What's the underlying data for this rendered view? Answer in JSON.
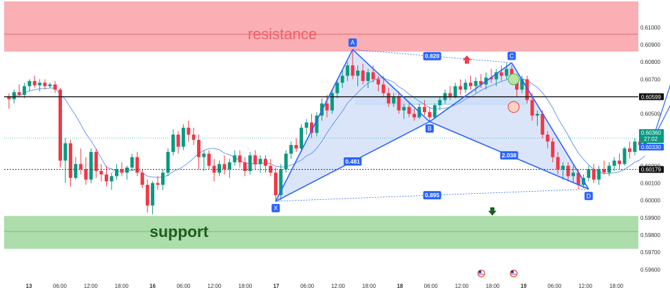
{
  "chart_data": {
    "type": "candlestick",
    "y_axis": {
      "ticks": [
        "0.61000",
        "0.60900",
        "0.60800",
        "0.60700",
        "0.60600",
        "0.60500",
        "0.60400",
        "0.60300",
        "0.60200",
        "0.60100",
        "0.60000",
        "0.59900",
        "0.59800",
        "0.59700",
        "0.59600"
      ],
      "range": [
        0.5955,
        0.6115
      ]
    },
    "x_axis": {
      "ticks": [
        "13",
        "06:00",
        "12:00",
        "18:00",
        "16",
        "06:00",
        "12:00",
        "18:00",
        "17",
        "06:00",
        "12:00",
        "18:00",
        "18",
        "06:00",
        "12:00",
        "18:00",
        "19",
        "06:00",
        "12:00",
        "18:00"
      ]
    },
    "zones": {
      "resistance": {
        "label": "resistance",
        "from": 0.6086,
        "to": 0.6115,
        "mid": 0.6096,
        "color": "#f8a1a6"
      },
      "support": {
        "label": "support",
        "from": 0.5972,
        "to": 0.5991,
        "mid": 0.5982,
        "color": "#a3d9a1"
      },
      "entry_box": {
        "from": 0.60555,
        "to": 0.60595,
        "color": "#cfe8f7"
      }
    },
    "levels": {
      "horizontal_black": {
        "value": 0.60599,
        "label": "0.60599"
      },
      "dotted_black": {
        "value": 0.60179,
        "label": "0.60179"
      },
      "dotted_blue": {
        "value": 0.6036
      }
    },
    "price_tags": {
      "current": {
        "value": "0.60360",
        "countdown": "27:02",
        "color": "#089981"
      },
      "ma": {
        "value": "0.60330",
        "color": "#2962ff"
      }
    },
    "harmonic": {
      "points": [
        {
          "label": "X",
          "bar": 52,
          "price": 0.59995
        },
        {
          "label": "A",
          "bar": 67,
          "price": 0.60872
        },
        {
          "label": "B",
          "bar": 82,
          "price": 0.60455
        },
        {
          "label": "C",
          "bar": 98,
          "price": 0.60795
        },
        {
          "label": "D",
          "bar": 113,
          "price": 0.60065
        }
      ],
      "ratios": [
        {
          "label": "0.828",
          "pair": "A-C"
        },
        {
          "label": "0.481",
          "pair": "X-B"
        },
        {
          "label": "2.038",
          "pair": "B-D"
        },
        {
          "label": "0.895",
          "pair": "X-D"
        }
      ],
      "color": "#2962ff",
      "fill": "#cfdcf7"
    },
    "candles": [
      [
        0.606,
        0.60618,
        0.6053,
        0.60585
      ],
      [
        0.60585,
        0.6064,
        0.6056,
        0.60625
      ],
      [
        0.60625,
        0.6067,
        0.606,
        0.6061
      ],
      [
        0.6061,
        0.6068,
        0.6059,
        0.6066
      ],
      [
        0.6066,
        0.607,
        0.6063,
        0.6069
      ],
      [
        0.6069,
        0.6072,
        0.6065,
        0.60665
      ],
      [
        0.60665,
        0.607,
        0.6063,
        0.6068
      ],
      [
        0.6068,
        0.607,
        0.6064,
        0.6066
      ],
      [
        0.6066,
        0.6068,
        0.6065,
        0.6067
      ],
      [
        0.6067,
        0.6069,
        0.6062,
        0.6064
      ],
      [
        0.6064,
        0.6065,
        0.6019,
        0.6023
      ],
      [
        0.6023,
        0.6036,
        0.601,
        0.6033
      ],
      [
        0.6033,
        0.6035,
        0.6008,
        0.6013
      ],
      [
        0.6013,
        0.6025,
        0.6012,
        0.6021
      ],
      [
        0.6021,
        0.603,
        0.6015,
        0.6018
      ],
      [
        0.6018,
        0.6025,
        0.6009,
        0.6012
      ],
      [
        0.6012,
        0.603,
        0.601,
        0.6028
      ],
      [
        0.6028,
        0.603,
        0.6013,
        0.6017
      ],
      [
        0.6017,
        0.6021,
        0.6011,
        0.6015
      ],
      [
        0.6015,
        0.602,
        0.6008,
        0.6011
      ],
      [
        0.6011,
        0.6016,
        0.6006,
        0.6014
      ],
      [
        0.6014,
        0.6021,
        0.6012,
        0.6018
      ],
      [
        0.6018,
        0.6022,
        0.6014,
        0.6016
      ],
      [
        0.6016,
        0.602,
        0.6012,
        0.6019
      ],
      [
        0.6019,
        0.6027,
        0.6017,
        0.6025
      ],
      [
        0.6025,
        0.6028,
        0.6014,
        0.6016
      ],
      [
        0.6016,
        0.6018,
        0.6007,
        0.6009
      ],
      [
        0.6009,
        0.6012,
        0.5993,
        0.5997
      ],
      [
        0.5997,
        0.6011,
        0.5992,
        0.601
      ],
      [
        0.601,
        0.6014,
        0.6006,
        0.6009
      ],
      [
        0.6009,
        0.6018,
        0.6006,
        0.6016
      ],
      [
        0.6016,
        0.603,
        0.6014,
        0.6028
      ],
      [
        0.6028,
        0.6041,
        0.6026,
        0.6038
      ],
      [
        0.6038,
        0.604,
        0.6027,
        0.6031
      ],
      [
        0.6031,
        0.6044,
        0.6029,
        0.6042
      ],
      [
        0.6042,
        0.6046,
        0.6034,
        0.6038
      ],
      [
        0.6038,
        0.6042,
        0.6032,
        0.6035
      ],
      [
        0.6035,
        0.6038,
        0.6018,
        0.6025
      ],
      [
        0.6025,
        0.6029,
        0.6017,
        0.6027
      ],
      [
        0.6027,
        0.6029,
        0.6018,
        0.602
      ],
      [
        0.602,
        0.6024,
        0.6011,
        0.6016
      ],
      [
        0.6016,
        0.6023,
        0.6014,
        0.6021
      ],
      [
        0.6021,
        0.6026,
        0.6015,
        0.6018
      ],
      [
        0.6018,
        0.6024,
        0.6013,
        0.6022
      ],
      [
        0.6022,
        0.6029,
        0.602,
        0.6026
      ],
      [
        0.6026,
        0.6029,
        0.6019,
        0.6022
      ],
      [
        0.6022,
        0.6025,
        0.6014,
        0.6017
      ],
      [
        0.6017,
        0.6028,
        0.6015,
        0.6026
      ],
      [
        0.6026,
        0.6029,
        0.6018,
        0.6021
      ],
      [
        0.6021,
        0.6026,
        0.6016,
        0.6024
      ],
      [
        0.6024,
        0.6026,
        0.6016,
        0.602
      ],
      [
        0.602,
        0.6024,
        0.6014,
        0.6016
      ],
      [
        0.6016,
        0.6019,
        0.5999,
        0.6003
      ],
      [
        0.6003,
        0.6021,
        0.6,
        0.6018
      ],
      [
        0.6018,
        0.6029,
        0.6016,
        0.6027
      ],
      [
        0.6027,
        0.6034,
        0.6024,
        0.6032
      ],
      [
        0.6032,
        0.6036,
        0.6028,
        0.603
      ],
      [
        0.603,
        0.6044,
        0.6028,
        0.6042
      ],
      [
        0.6042,
        0.6047,
        0.6038,
        0.6045
      ],
      [
        0.6045,
        0.605,
        0.6036,
        0.6039
      ],
      [
        0.6039,
        0.6051,
        0.6037,
        0.6049
      ],
      [
        0.6049,
        0.6059,
        0.6046,
        0.6056
      ],
      [
        0.6056,
        0.6061,
        0.6048,
        0.6052
      ],
      [
        0.6052,
        0.6064,
        0.605,
        0.6062
      ],
      [
        0.6062,
        0.607,
        0.6059,
        0.6068
      ],
      [
        0.6068,
        0.6076,
        0.6065,
        0.6072
      ],
      [
        0.6072,
        0.608,
        0.6069,
        0.6078
      ],
      [
        0.6078,
        0.60872,
        0.607,
        0.6072
      ],
      [
        0.6072,
        0.6078,
        0.6066,
        0.6075
      ],
      [
        0.6075,
        0.6079,
        0.6067,
        0.6069
      ],
      [
        0.6069,
        0.6076,
        0.6065,
        0.6074
      ],
      [
        0.6074,
        0.6078,
        0.6068,
        0.607
      ],
      [
        0.607,
        0.6072,
        0.6063,
        0.6067
      ],
      [
        0.6067,
        0.6072,
        0.606,
        0.6062
      ],
      [
        0.6062,
        0.6065,
        0.6054,
        0.6056
      ],
      [
        0.6056,
        0.6062,
        0.6054,
        0.606
      ],
      [
        0.606,
        0.6063,
        0.605,
        0.6052
      ],
      [
        0.6052,
        0.6056,
        0.6047,
        0.6054
      ],
      [
        0.6054,
        0.6057,
        0.6048,
        0.605
      ],
      [
        0.605,
        0.6053,
        0.6046,
        0.6048
      ],
      [
        0.6048,
        0.6056,
        0.6047,
        0.6054
      ],
      [
        0.6054,
        0.6058,
        0.6049,
        0.6051
      ],
      [
        0.6051,
        0.6054,
        0.60455,
        0.6048
      ],
      [
        0.6048,
        0.6056,
        0.6047,
        0.6055
      ],
      [
        0.6055,
        0.606,
        0.6052,
        0.6058
      ],
      [
        0.6058,
        0.6064,
        0.6056,
        0.6062
      ],
      [
        0.6062,
        0.6066,
        0.6058,
        0.606
      ],
      [
        0.606,
        0.6068,
        0.6059,
        0.6066
      ],
      [
        0.6066,
        0.607,
        0.6061,
        0.6064
      ],
      [
        0.6064,
        0.607,
        0.6062,
        0.6068
      ],
      [
        0.6068,
        0.6072,
        0.6064,
        0.6066
      ],
      [
        0.6066,
        0.6071,
        0.6062,
        0.6069
      ],
      [
        0.6069,
        0.6073,
        0.6065,
        0.6067
      ],
      [
        0.6067,
        0.6074,
        0.6064,
        0.6071
      ],
      [
        0.6071,
        0.6076,
        0.6068,
        0.607
      ],
      [
        0.607,
        0.6076,
        0.6066,
        0.6074
      ],
      [
        0.6074,
        0.6078,
        0.6069,
        0.6072
      ],
      [
        0.6072,
        0.60795,
        0.607,
        0.6076
      ],
      [
        0.6076,
        0.6078,
        0.6068,
        0.607
      ],
      [
        0.607,
        0.6073,
        0.606,
        0.6064
      ],
      [
        0.6064,
        0.6072,
        0.6062,
        0.607
      ],
      [
        0.607,
        0.6072,
        0.6056,
        0.6058
      ],
      [
        0.6058,
        0.6062,
        0.6046,
        0.6049
      ],
      [
        0.6049,
        0.6052,
        0.6043,
        0.605
      ],
      [
        0.605,
        0.6052,
        0.6036,
        0.6038
      ],
      [
        0.6038,
        0.604,
        0.603,
        0.6034
      ],
      [
        0.6034,
        0.6036,
        0.6022,
        0.6025
      ],
      [
        0.6025,
        0.6028,
        0.6015,
        0.6018
      ],
      [
        0.6018,
        0.6022,
        0.6012,
        0.602
      ],
      [
        0.602,
        0.6022,
        0.6011,
        0.6014
      ],
      [
        0.6014,
        0.602,
        0.601,
        0.6016
      ],
      [
        0.6016,
        0.6018,
        0.60065,
        0.6009
      ],
      [
        0.6009,
        0.6015,
        0.6007,
        0.6013
      ],
      [
        0.6013,
        0.602,
        0.6011,
        0.6018
      ],
      [
        0.6018,
        0.6021,
        0.601,
        0.6012
      ],
      [
        0.6012,
        0.602,
        0.6009,
        0.6018
      ],
      [
        0.6018,
        0.6023,
        0.6015,
        0.6016
      ],
      [
        0.6016,
        0.6022,
        0.6014,
        0.602
      ],
      [
        0.602,
        0.6025,
        0.6017,
        0.6023
      ],
      [
        0.6023,
        0.6027,
        0.6018,
        0.6021
      ],
      [
        0.6021,
        0.6031,
        0.602,
        0.603
      ],
      [
        0.603,
        0.6034,
        0.6024,
        0.6028
      ],
      [
        0.6028,
        0.6036,
        0.6026,
        0.6034
      ],
      [
        0.6034,
        0.6038,
        0.6029,
        0.6032
      ],
      [
        0.6032,
        0.6038,
        0.603,
        0.6036
      ]
    ],
    "projection": {
      "up_target": 0.6083,
      "down_target": 0.6,
      "color": "#2962ff"
    },
    "markers": {
      "up_arrow_color": "#f23645",
      "down_arrow_color": "#1b5e20",
      "green_circle": "#b7e4a5",
      "red_circle": "#f9d3c2"
    }
  }
}
